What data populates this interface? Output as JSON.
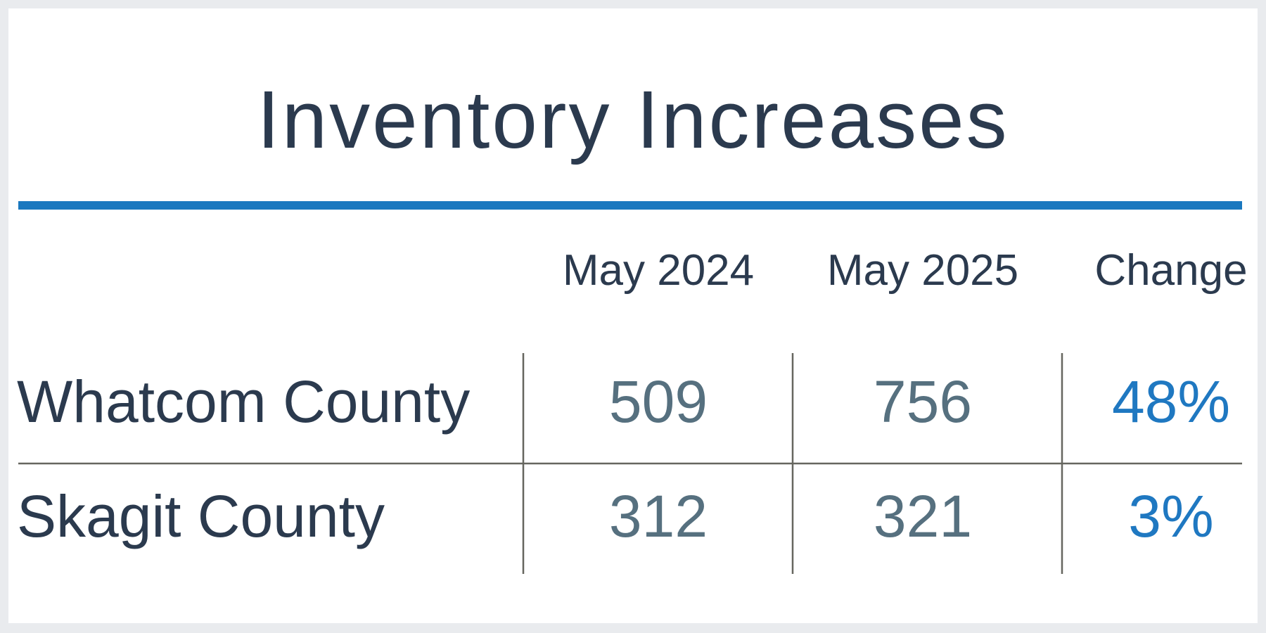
{
  "header": {
    "title": "Inventory Increases"
  },
  "table": {
    "columns": [
      "May 2024",
      "May 2025",
      "Change"
    ],
    "rows": [
      {
        "label": "Whatcom County",
        "cells": [
          "509",
          "756",
          "48%"
        ]
      },
      {
        "label": "Skagit County",
        "cells": [
          "312",
          "321",
          "3%"
        ]
      }
    ]
  }
}
